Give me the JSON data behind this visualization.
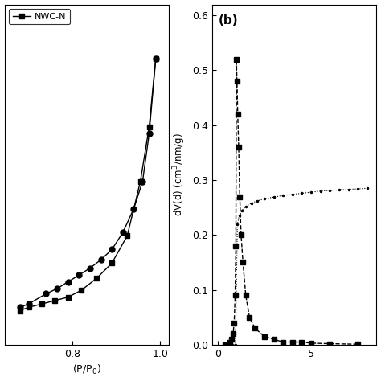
{
  "subplot_a": {
    "adsorption_x": [
      0.68,
      0.7,
      0.73,
      0.76,
      0.79,
      0.82,
      0.855,
      0.89,
      0.925,
      0.955,
      0.975,
      0.99
    ],
    "adsorption_y": [
      0.08,
      0.09,
      0.1,
      0.11,
      0.12,
      0.14,
      0.175,
      0.22,
      0.3,
      0.46,
      0.62,
      0.82
    ],
    "desorption_x": [
      0.99,
      0.975,
      0.96,
      0.94,
      0.915,
      0.89,
      0.865,
      0.84,
      0.815,
      0.79,
      0.765,
      0.74,
      0.7,
      0.68
    ],
    "desorption_y": [
      0.82,
      0.6,
      0.46,
      0.38,
      0.31,
      0.26,
      0.23,
      0.205,
      0.185,
      0.165,
      0.145,
      0.13,
      0.1,
      0.09
    ],
    "xlabel": "(P/P$_0$)",
    "ylabel": "",
    "xlim": [
      0.645,
      1.02
    ],
    "ylim": [
      -0.02,
      0.98
    ],
    "xticks": [
      0.8,
      1.0
    ],
    "yticks": [],
    "legend_label": "NWC-N"
  },
  "subplot_b": {
    "dashed_x": [
      0.38,
      0.5,
      0.65,
      0.75,
      0.82,
      0.88,
      0.93,
      0.97,
      1.0,
      1.03,
      1.07,
      1.12,
      1.18,
      1.25,
      1.35,
      1.5,
      1.7,
      2.0,
      2.5,
      3.0,
      3.5,
      4.0,
      4.5,
      5.0,
      6.0,
      7.5
    ],
    "dashed_y": [
      0.0,
      0.0,
      0.005,
      0.01,
      0.02,
      0.04,
      0.09,
      0.18,
      0.52,
      0.48,
      0.42,
      0.36,
      0.27,
      0.2,
      0.15,
      0.09,
      0.05,
      0.03,
      0.015,
      0.01,
      0.005,
      0.005,
      0.005,
      0.003,
      0.002,
      0.001
    ],
    "dotted_x": [
      0.38,
      0.6,
      0.8,
      0.95,
      1.05,
      1.15,
      1.3,
      1.5,
      1.8,
      2.1,
      2.5,
      3.0,
      3.5,
      4.0,
      4.5,
      5.0,
      5.5,
      6.0,
      6.5,
      7.0,
      7.5,
      8.0
    ],
    "dotted_y": [
      0.0,
      0.0,
      0.0,
      0.0,
      0.22,
      0.235,
      0.245,
      0.252,
      0.258,
      0.262,
      0.266,
      0.269,
      0.272,
      0.274,
      0.276,
      0.278,
      0.28,
      0.281,
      0.282,
      0.283,
      0.284,
      0.285
    ],
    "xlabel": "",
    "ylabel": "dV(d) (cm$^3$/nm/g)",
    "xlim": [
      -0.3,
      8.5
    ],
    "ylim": [
      0.0,
      0.62
    ],
    "xticks": [
      0,
      5
    ],
    "yticks": [
      0.0,
      0.1,
      0.2,
      0.3,
      0.4,
      0.5,
      0.6
    ],
    "yticklabels": [
      "0.0",
      "0.1",
      "0.2",
      "0.3",
      "0.4",
      "0.5",
      "0.6"
    ],
    "panel_label": "(b)"
  },
  "marker_square_size": 5,
  "marker_circle_size": 5,
  "dot_size": 3,
  "line_color": "black",
  "line_width": 1.0
}
